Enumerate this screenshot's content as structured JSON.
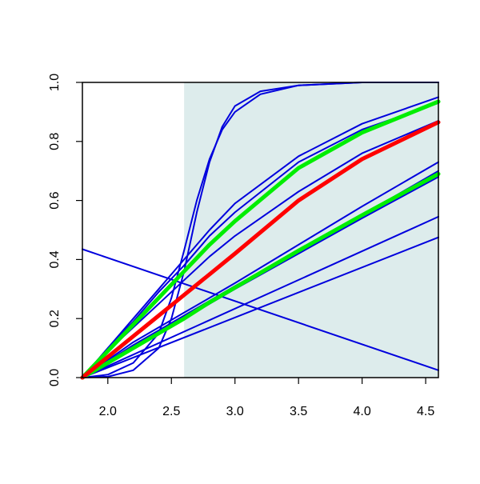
{
  "chart_data": {
    "type": "line",
    "title": "",
    "xlabel": "",
    "ylabel": "",
    "xlim": [
      1.8,
      4.6
    ],
    "ylim": [
      0.0,
      1.0
    ],
    "grid": false,
    "x_ticks": [
      2.0,
      2.5,
      3.0,
      3.5,
      4.0,
      4.5
    ],
    "x_tick_labels": [
      "2.0",
      "2.5",
      "3.0",
      "3.5",
      "4.0",
      "4.5"
    ],
    "y_ticks": [
      0.0,
      0.2,
      0.4,
      0.6,
      0.8,
      1.0
    ],
    "y_tick_labels": [
      "0.0",
      "0.2",
      "0.4",
      "0.6",
      "0.8",
      "1.0"
    ],
    "shaded_region": {
      "x": [
        2.6,
        4.6
      ],
      "color": "#ddecec"
    },
    "colors": {
      "blue": "#0000dd",
      "green": "#00ee00",
      "red": "#ff0000"
    },
    "series": [
      {
        "color": "#0000dd",
        "width": "thin",
        "x": [
          1.8,
          2.0,
          2.2,
          2.4,
          2.5,
          2.6,
          2.7,
          2.8,
          2.9,
          3.0,
          3.2,
          3.5,
          4.0,
          4.6
        ],
        "y": [
          0.0,
          0.003,
          0.025,
          0.1,
          0.2,
          0.36,
          0.56,
          0.73,
          0.85,
          0.92,
          0.97,
          0.99,
          1.0,
          1.0
        ]
      },
      {
        "color": "#0000dd",
        "width": "thin",
        "x": [
          1.8,
          2.0,
          2.2,
          2.4,
          2.5,
          2.6,
          2.7,
          2.8,
          2.9,
          3.0,
          3.2,
          3.5,
          4.0,
          4.6
        ],
        "y": [
          0.0,
          0.01,
          0.05,
          0.15,
          0.27,
          0.43,
          0.6,
          0.74,
          0.84,
          0.9,
          0.96,
          0.99,
          1.0,
          1.0
        ]
      },
      {
        "color": "#0000dd",
        "width": "thin",
        "x": [
          1.8,
          2.0,
          2.2,
          2.4,
          2.6,
          2.8,
          3.0,
          3.5,
          4.0,
          4.6
        ],
        "y": [
          0.0,
          0.1,
          0.2,
          0.3,
          0.4,
          0.5,
          0.59,
          0.75,
          0.86,
          0.95
        ]
      },
      {
        "color": "#0000dd",
        "width": "thin",
        "x": [
          1.8,
          2.0,
          2.2,
          2.4,
          2.6,
          2.8,
          3.0,
          3.5,
          4.0,
          4.6
        ],
        "y": [
          0.0,
          0.1,
          0.19,
          0.29,
          0.38,
          0.48,
          0.56,
          0.73,
          0.84,
          0.93
        ]
      },
      {
        "color": "#0000dd",
        "width": "thin",
        "x": [
          1.8,
          2.0,
          2.2,
          2.4,
          2.6,
          2.8,
          3.0,
          3.5,
          4.0,
          4.6
        ],
        "y": [
          0.0,
          0.09,
          0.17,
          0.25,
          0.33,
          0.41,
          0.48,
          0.63,
          0.76,
          0.87
        ]
      },
      {
        "color": "#0000dd",
        "width": "thin",
        "x": [
          1.8,
          2.0,
          2.2,
          2.4,
          2.6,
          2.8,
          3.0,
          3.5,
          4.0,
          4.6
        ],
        "y": [
          0.0,
          0.06,
          0.12,
          0.17,
          0.22,
          0.27,
          0.32,
          0.45,
          0.58,
          0.73
        ]
      },
      {
        "color": "#0000dd",
        "width": "thin",
        "x": [
          1.8,
          2.0,
          2.2,
          2.4,
          2.6,
          2.8,
          3.0,
          3.5,
          4.0,
          4.6
        ],
        "y": [
          0.0,
          0.055,
          0.11,
          0.16,
          0.21,
          0.26,
          0.31,
          0.43,
          0.55,
          0.7
        ]
      },
      {
        "color": "#0000dd",
        "width": "thin",
        "x": [
          1.8,
          2.0,
          2.2,
          2.4,
          2.6,
          2.8,
          3.0,
          3.5,
          4.0,
          4.6
        ],
        "y": [
          0.0,
          0.05,
          0.1,
          0.15,
          0.2,
          0.25,
          0.3,
          0.42,
          0.54,
          0.68
        ]
      },
      {
        "color": "#0000dd",
        "width": "thin",
        "x": [
          1.8,
          4.6
        ],
        "y": [
          0.0,
          0.545
        ]
      },
      {
        "color": "#0000dd",
        "width": "thin",
        "x": [
          1.8,
          4.6
        ],
        "y": [
          0.0,
          0.475
        ]
      },
      {
        "color": "#0000dd",
        "width": "thin",
        "x": [
          1.8,
          4.6
        ],
        "y": [
          0.435,
          0.025
        ]
      },
      {
        "color": "#00ee00",
        "width": "thick",
        "x": [
          1.8,
          2.0,
          2.2,
          2.4,
          2.6,
          2.8,
          3.0,
          3.5,
          4.0,
          4.6
        ],
        "y": [
          0.0,
          0.09,
          0.18,
          0.27,
          0.36,
          0.45,
          0.53,
          0.71,
          0.83,
          0.935
        ]
      },
      {
        "color": "#00ee00",
        "width": "thick",
        "x": [
          1.8,
          2.0,
          2.2,
          2.4,
          2.6,
          2.8,
          3.0,
          3.5,
          4.0,
          4.6
        ],
        "y": [
          0.0,
          0.05,
          0.1,
          0.15,
          0.2,
          0.255,
          0.305,
          0.43,
          0.55,
          0.69
        ]
      },
      {
        "color": "#ff0000",
        "width": "thick",
        "x": [
          1.8,
          2.0,
          2.2,
          2.4,
          2.6,
          2.8,
          3.0,
          3.5,
          4.0,
          4.6
        ],
        "y": [
          0.0,
          0.07,
          0.14,
          0.21,
          0.28,
          0.35,
          0.42,
          0.6,
          0.74,
          0.865
        ]
      }
    ]
  }
}
